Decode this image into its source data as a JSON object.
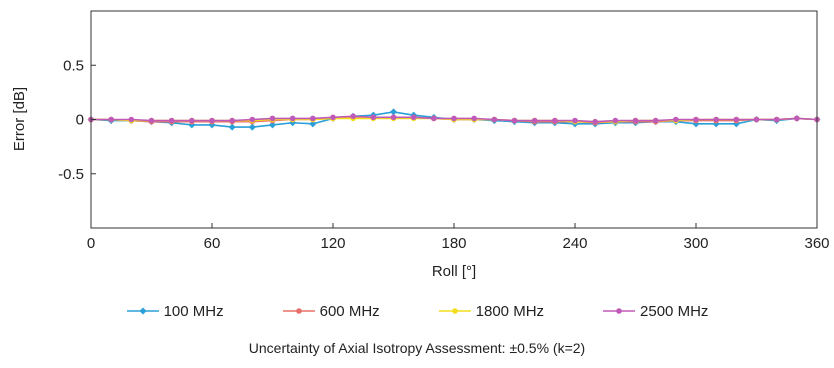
{
  "chart_data": {
    "type": "line",
    "xlabel": "Roll [°]",
    "ylabel": "Error [dB]",
    "xlim": [
      0,
      360
    ],
    "ylim": [
      -1,
      1
    ],
    "xticks": [
      "0",
      "60",
      "120",
      "180",
      "240",
      "300",
      "360"
    ],
    "yticks": [
      "0.5",
      "0",
      "-0.5"
    ],
    "grid": false,
    "legend_position": "bottom",
    "x": [
      0,
      10,
      20,
      30,
      40,
      50,
      60,
      70,
      80,
      90,
      100,
      110,
      120,
      130,
      140,
      150,
      160,
      170,
      180,
      190,
      200,
      210,
      220,
      230,
      240,
      250,
      260,
      270,
      280,
      290,
      300,
      310,
      320,
      330,
      340,
      350,
      360
    ],
    "series": [
      {
        "name": "100 MHz",
        "color": "#2a9fd8",
        "marker": "diamond",
        "values": [
          0.0,
          -0.01,
          -0.01,
          -0.02,
          -0.03,
          -0.05,
          -0.05,
          -0.07,
          -0.07,
          -0.05,
          -0.03,
          -0.04,
          0.01,
          0.03,
          0.04,
          0.07,
          0.04,
          0.02,
          0.0,
          0.0,
          -0.01,
          -0.02,
          -0.03,
          -0.03,
          -0.04,
          -0.04,
          -0.03,
          -0.03,
          -0.02,
          -0.02,
          -0.04,
          -0.04,
          -0.04,
          0.0,
          -0.01,
          0.01,
          0.0
        ]
      },
      {
        "name": "600 MHz",
        "color": "#e8706a",
        "marker": "circle",
        "values": [
          0.0,
          0.0,
          -0.01,
          -0.02,
          -0.02,
          -0.02,
          -0.02,
          -0.02,
          -0.02,
          -0.01,
          0.0,
          0.0,
          0.01,
          0.02,
          0.02,
          0.02,
          0.02,
          0.01,
          0.0,
          0.0,
          0.0,
          -0.01,
          -0.02,
          -0.02,
          -0.02,
          -0.03,
          -0.02,
          -0.02,
          -0.02,
          -0.01,
          -0.01,
          -0.01,
          -0.01,
          0.0,
          0.0,
          0.01,
          0.0
        ]
      },
      {
        "name": "1800 MHz",
        "color": "#f2de1a",
        "marker": "circle",
        "values": [
          0.0,
          0.0,
          -0.01,
          -0.01,
          -0.01,
          -0.01,
          -0.01,
          -0.01,
          -0.01,
          0.0,
          0.0,
          0.0,
          0.01,
          0.01,
          0.01,
          0.01,
          0.01,
          0.01,
          0.0,
          0.0,
          0.0,
          -0.01,
          -0.01,
          -0.01,
          -0.02,
          -0.02,
          -0.02,
          -0.01,
          -0.01,
          -0.01,
          0.0,
          0.0,
          0.0,
          0.0,
          0.0,
          0.01,
          0.0
        ]
      },
      {
        "name": "2500 MHz",
        "color": "#c05ab8",
        "marker": "circle",
        "values": [
          0.0,
          0.0,
          0.0,
          -0.01,
          -0.01,
          -0.01,
          -0.01,
          -0.01,
          0.0,
          0.01,
          0.01,
          0.01,
          0.02,
          0.03,
          0.02,
          0.02,
          0.02,
          0.01,
          0.01,
          0.01,
          0.0,
          -0.01,
          -0.01,
          -0.01,
          -0.01,
          -0.02,
          -0.01,
          -0.01,
          -0.01,
          0.0,
          0.0,
          0.0,
          0.0,
          0.0,
          0.0,
          0.01,
          0.0
        ]
      }
    ]
  },
  "footer": {
    "uncertainty_note": "Uncertainty of Axial Isotropy Assessment: ±0.5% (k=2)"
  }
}
